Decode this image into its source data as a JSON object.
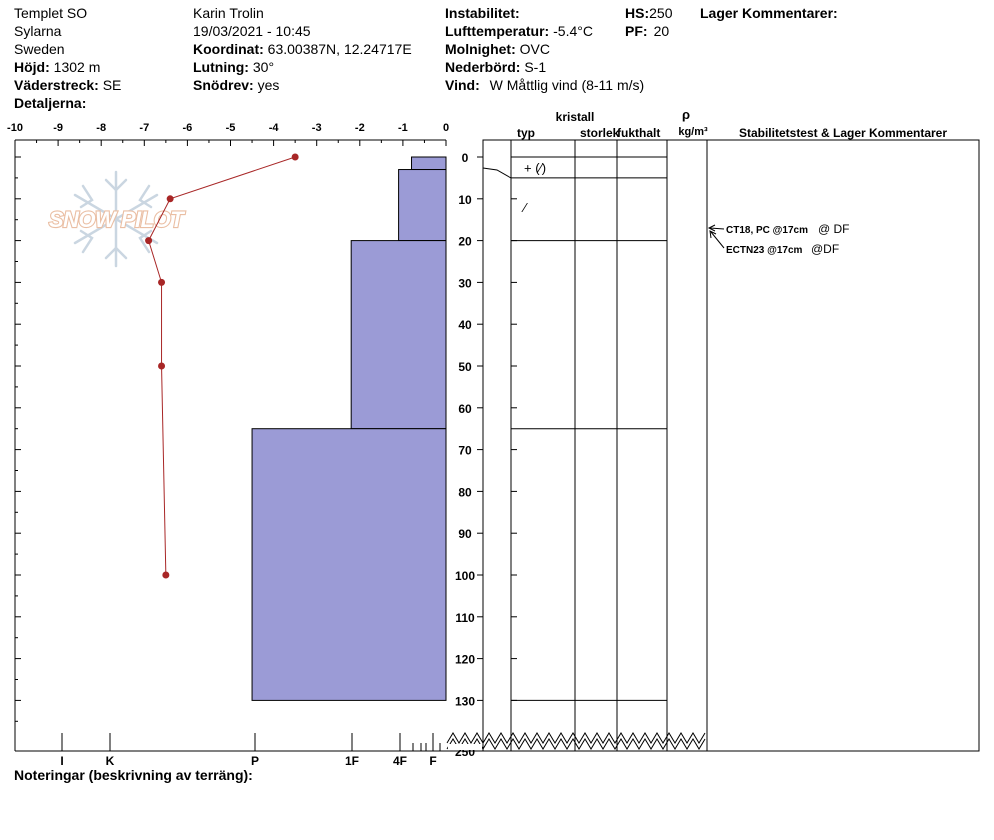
{
  "header": {
    "col1": {
      "location": "Templet SO",
      "area": "Sylarna",
      "country": "Sweden",
      "elevation_label": "Höjd:",
      "elevation": "1302 m",
      "aspect_label": "Väderstreck:",
      "aspect": "SE",
      "details_label": "Detaljerna:"
    },
    "col2": {
      "observer": "Karin Trolin",
      "datetime": "19/03/2021 - 10:45",
      "coord_label": "Koordinat:",
      "coord": "63.00387N, 12.24717E",
      "slope_label": "Lutning:",
      "slope": "30°",
      "drift_label": "Snödrev:",
      "drift": "yes"
    },
    "col3": {
      "instability_label": "Instabilitet:",
      "airtemp_label": "Lufttemperatur:",
      "airtemp": "-5.4°C",
      "sky_label": "Molnighet:",
      "sky": "OVC",
      "precip_label": "Nederbörd:",
      "precip": "S-1",
      "wind_label": "Vind:",
      "wind": "W Måttlig vind (8-11 m/s)"
    },
    "col4": {
      "hs_label": "HS:",
      "hs": "250",
      "pf_label": "PF:",
      "pf": "20",
      "layer_comments": "Lager Kommentarer:"
    }
  },
  "logo_text": "SNOW PILOT",
  "footer": {
    "notes_label": "Noteringar (beskrivning av terräng):"
  },
  "table_headers": {
    "crystal": "kristall",
    "type": "typ",
    "size": "storlek",
    "moisture": "fukthalt",
    "rho": "ρ",
    "density_unit": "kg/m³",
    "stability": "Stabilitetstest & Lager Kommentarer"
  },
  "chart_data": {
    "type": "line",
    "x_axis_temperature": {
      "ticks": [
        "-10",
        "-9",
        "-8",
        "-7",
        "-6",
        "-5",
        "-4",
        "-3",
        "-2",
        "-1",
        "0"
      ],
      "range": [
        -10,
        0
      ]
    },
    "x_axis_hardness": {
      "ticks": [
        "I",
        "K",
        "P",
        "1F",
        "4F",
        "F"
      ]
    },
    "y_axis_depth": {
      "ticks": [
        "0",
        "10",
        "20",
        "30",
        "40",
        "50",
        "60",
        "70",
        "80",
        "90",
        "100",
        "110",
        "120",
        "130",
        "250"
      ],
      "range": [
        0,
        130
      ],
      "inverted": true
    },
    "temperature_profile": [
      {
        "depth": 0,
        "temp": -3.5
      },
      {
        "depth": 10,
        "temp": -6.4
      },
      {
        "depth": 20,
        "temp": -6.9
      },
      {
        "depth": 30,
        "temp": -6.6
      },
      {
        "depth": 50,
        "temp": -6.6
      },
      {
        "depth": 100,
        "temp": -6.5
      }
    ],
    "hardness_profile": [
      {
        "top": 0,
        "bottom": 3,
        "value": -0.8
      },
      {
        "top": 3,
        "bottom": 20,
        "value": -1.1
      },
      {
        "top": 20,
        "bottom": 65,
        "value": -2.2
      },
      {
        "top": 65,
        "bottom": 130,
        "value": -4.5
      }
    ],
    "layer_boundaries": [
      0,
      5,
      20,
      65,
      130
    ],
    "crystal_symbols": [
      {
        "depth": 2.5,
        "text": "+ (⁄)"
      },
      {
        "depth": 12,
        "text": "⁄"
      }
    ],
    "stability_tests": [
      {
        "text": "CT18, PC @17cm",
        "suffix": "@ DF"
      },
      {
        "text": "ECTN23 @17cm",
        "suffix": "@DF"
      }
    ],
    "colors": {
      "hardness_fill": "#9b9bd6",
      "temp_line": "#a82626"
    }
  }
}
